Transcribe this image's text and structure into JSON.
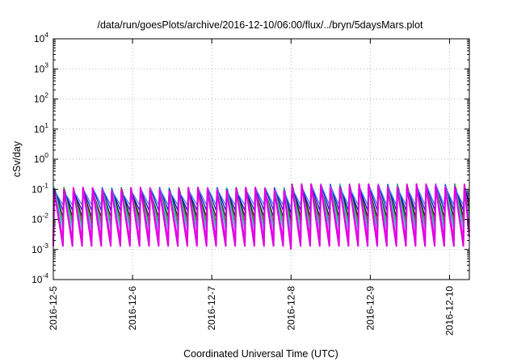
{
  "chart_data": {
    "type": "line",
    "title": "/data/run/goesPlots/archive/2016-12-10/06:00/flux/../bryn/5daysMars.plot",
    "xlabel": "Coordinated Universal Time (UTC)",
    "ylabel": "cSv/day",
    "y_scale": "log",
    "ylim": [
      0.0001,
      10000
    ],
    "y_ticks": [
      {
        "base": "10",
        "exp": "4"
      },
      {
        "base": "10",
        "exp": "3"
      },
      {
        "base": "10",
        "exp": "2"
      },
      {
        "base": "10",
        "exp": "1"
      },
      {
        "base": "10",
        "exp": "0"
      },
      {
        "base": "10",
        "exp": "-1"
      },
      {
        "base": "10",
        "exp": "-2"
      },
      {
        "base": "10",
        "exp": "-3"
      },
      {
        "base": "10",
        "exp": "-4"
      }
    ],
    "x_ticks": [
      "2016-12-5",
      "2016-12-6",
      "2016-12-7",
      "2016-12-8",
      "2016-12-9",
      "2016-12-10"
    ],
    "xlim": [
      "2016-12-05T00:00",
      "2016-12-10T06:00"
    ],
    "grid": true,
    "sawtooth": {
      "period_hours": 2.9,
      "segments": [
        {
          "start": "2016-12-05T00:00",
          "end": "2016-12-08T00:00",
          "peak": 0.1,
          "rise_hours": 0.3
        },
        {
          "start": "2016-12-08T00:00",
          "end": "2016-12-10T06:00",
          "peak": 0.13,
          "rise_hours": 0.3
        }
      ]
    },
    "series": [
      {
        "color": "#ff2020",
        "trough": 0.005
      },
      {
        "color": "#8a1a1a",
        "trough": 0.008
      },
      {
        "color": "#202020",
        "trough": 0.012
      },
      {
        "color": "#30b040",
        "trough": 0.007
      },
      {
        "color": "#20d8e0",
        "trough": 0.0045
      },
      {
        "color": "#1010d0",
        "trough": 0.02
      },
      {
        "color": "#4080e8",
        "trough": 0.03
      },
      {
        "color": "#ff00ff",
        "trough": 0.002
      },
      {
        "color": "#e000e0",
        "trough": 0.0013
      }
    ]
  }
}
